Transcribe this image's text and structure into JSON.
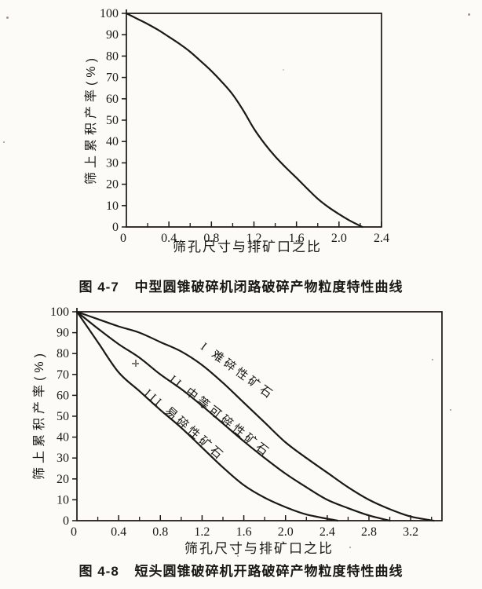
{
  "page": {
    "background": "#fcfbf7",
    "ink": "#1b1915"
  },
  "chart_data": [
    {
      "type": "line",
      "fig_number": "图 4-7",
      "fig_title": "中型圆锥破碎机闭路破碎产物粒度特性曲线",
      "xlabel": "筛孔尺寸与排矿口之比",
      "ylabel": "筛上累积产率(%)",
      "xlim": [
        0,
        2.4
      ],
      "ylim": [
        0,
        100
      ],
      "xticks": [
        0,
        0.4,
        0.8,
        1.2,
        1.6,
        2.0,
        2.4
      ],
      "xtick_labels": [
        "0",
        "0.4",
        "0.8",
        "1.2",
        "1.6",
        "2.0",
        "2.4"
      ],
      "x_minor_step": 0.2,
      "yticks": [
        0,
        10,
        20,
        30,
        40,
        50,
        60,
        70,
        80,
        90,
        100
      ],
      "ytick_labels": [
        "0",
        "10",
        "20",
        "30",
        "40",
        "50",
        "60",
        "70",
        "80",
        "90",
        "100"
      ],
      "grid": false,
      "frame": "box",
      "legend": "none",
      "series": [
        {
          "id": "closed-circuit-curve",
          "name": "闭路破碎产物粒度特性曲线",
          "x": [
            0,
            0.1,
            0.2,
            0.3,
            0.4,
            0.5,
            0.6,
            0.7,
            0.8,
            0.9,
            1.0,
            1.1,
            1.2,
            1.3,
            1.4,
            1.5,
            1.6,
            1.7,
            1.8,
            1.9,
            2.0,
            2.1,
            2.22
          ],
          "y": [
            100,
            97.5,
            95,
            92.2,
            89,
            85.7,
            82,
            77.6,
            73,
            67.8,
            62,
            54.5,
            46,
            39,
            33,
            27.8,
            23,
            18,
            13.2,
            9.3,
            6,
            3,
            0
          ]
        }
      ]
    },
    {
      "type": "line",
      "fig_number": "图 4-8",
      "fig_title": "短头圆锥破碎机开路破碎产物粒度特性曲线",
      "xlabel": "筛孔尺寸与排矿口之比",
      "ylabel": "筛上累积产率(%)",
      "xlim": [
        0,
        3.5
      ],
      "ylim": [
        0,
        100
      ],
      "xticks": [
        0,
        0.4,
        0.8,
        1.2,
        1.6,
        2.0,
        2.4,
        2.8,
        3.2
      ],
      "xtick_labels": [
        "0",
        "0.4",
        "0.8",
        "1.2",
        "1.6",
        "2.0",
        "2.4",
        "2.8",
        "3.2"
      ],
      "x_minor_step": 0.2,
      "yticks": [
        0,
        10,
        20,
        30,
        40,
        50,
        60,
        70,
        80,
        90,
        100
      ],
      "ytick_labels": [
        "0",
        "10",
        "20",
        "30",
        "40",
        "50",
        "60",
        "70",
        "80",
        "90",
        "100"
      ],
      "grid": false,
      "frame": "box",
      "legend": "inline-rotated-labels",
      "series": [
        {
          "id": "curve-I-hard-ore",
          "name": "难碎性矿石",
          "label": "I 难碎性矿石",
          "label_x": 1.18,
          "label_y": 82.5,
          "label_angle": 36,
          "x": [
            0,
            0.2,
            0.4,
            0.6,
            0.8,
            1.0,
            1.2,
            1.4,
            1.6,
            1.8,
            2.0,
            2.2,
            2.4,
            2.6,
            2.8,
            3.0,
            3.2,
            3.42
          ],
          "y": [
            100,
            96.5,
            93,
            90,
            85.5,
            81,
            74.5,
            66,
            56.5,
            47,
            37.5,
            30,
            23,
            16,
            10,
            5.5,
            2,
            0
          ]
        },
        {
          "id": "curve-II-medium-ore",
          "name": "中等可碎性矿石",
          "label": "II 中等可碎性矿石",
          "label_x": 0.88,
          "label_y": 67,
          "label_angle": 38,
          "x": [
            0,
            0.2,
            0.4,
            0.6,
            0.8,
            1.0,
            1.2,
            1.4,
            1.6,
            1.8,
            2.0,
            2.2,
            2.4,
            2.6,
            2.8,
            3.0
          ],
          "y": [
            100,
            92,
            84.5,
            78,
            70,
            63,
            55,
            46.5,
            38,
            30,
            22.5,
            16,
            10,
            6,
            2.5,
            0
          ]
        },
        {
          "id": "curve-III-soft-ore",
          "name": "易碎性矿石",
          "label": "III 易碎性矿石",
          "label_x": 0.64,
          "label_y": 60.5,
          "label_angle": 41,
          "x": [
            0,
            0.2,
            0.4,
            0.6,
            0.8,
            1.0,
            1.2,
            1.4,
            1.6,
            1.8,
            2.0,
            2.2,
            2.5
          ],
          "y": [
            100,
            85.5,
            71,
            62,
            53,
            44.5,
            35,
            25.5,
            17,
            11,
            6.5,
            3,
            0
          ]
        }
      ]
    }
  ]
}
